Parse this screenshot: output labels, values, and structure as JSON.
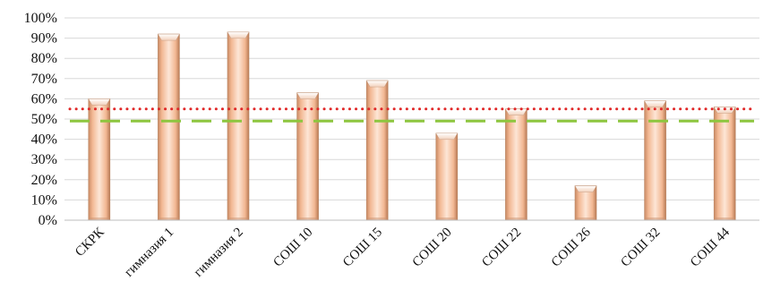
{
  "chart_data": {
    "type": "bar",
    "title": "",
    "xlabel": "",
    "ylabel": "",
    "categories": [
      "СКРК",
      "гимназия 1",
      "гимназия 2",
      "СОШ 10",
      "СОШ 15",
      "СОШ 20",
      "СОШ 22",
      "СОШ 26",
      "СОШ 32",
      "СОШ 44"
    ],
    "values": [
      60,
      92,
      93,
      63,
      69,
      43,
      55,
      17,
      59,
      56
    ],
    "ylim": [
      0,
      100
    ],
    "yticks": [
      "0%",
      "10%",
      "20%",
      "30%",
      "40%",
      "50%",
      "60%",
      "70%",
      "80%",
      "90%",
      "100%"
    ],
    "grid": true,
    "reference_lines": [
      {
        "value": 55,
        "style": "dotted",
        "color": "#e02828"
      },
      {
        "value": 49,
        "style": "dashed",
        "color": "#8dc63f"
      }
    ],
    "colors": {
      "bar_light": "#fbe1cf",
      "bar_mid": "#f2b792",
      "bar_dark": "#c98a64",
      "bar_top": "#ffffff",
      "grid": "#d8d8d8",
      "axis": "#bdbdbd"
    }
  }
}
